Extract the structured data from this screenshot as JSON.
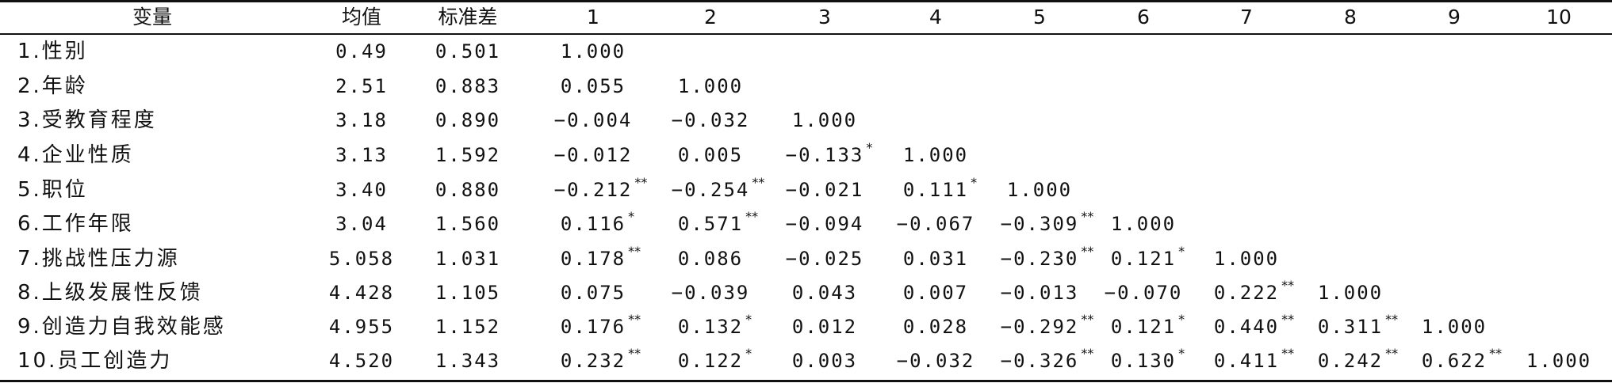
{
  "header": [
    "变量",
    "均值",
    "标准差",
    "1",
    "2",
    "3",
    "4",
    "5",
    "6",
    "7",
    "8",
    "9",
    "10"
  ],
  "rows": [
    {
      "label": "1.性别",
      "mean": "0.49",
      "sd": "0.501",
      "c": [
        {
          "v": "1.000",
          "s": ""
        }
      ]
    },
    {
      "label": "2.年龄",
      "mean": "2.51",
      "sd": "0.883",
      "c": [
        {
          "v": "0.055",
          "s": ""
        },
        {
          "v": "1.000",
          "s": ""
        }
      ]
    },
    {
      "label": "3.受教育程度",
      "mean": "3.18",
      "sd": "0.890",
      "c": [
        {
          "v": "−0.004",
          "s": ""
        },
        {
          "v": "−0.032",
          "s": ""
        },
        {
          "v": "1.000",
          "s": ""
        }
      ]
    },
    {
      "label": "4.企业性质",
      "mean": "3.13",
      "sd": "1.592",
      "c": [
        {
          "v": "−0.012",
          "s": ""
        },
        {
          "v": "0.005",
          "s": ""
        },
        {
          "v": "−0.133",
          "s": "*"
        },
        {
          "v": "1.000",
          "s": ""
        }
      ]
    },
    {
      "label": "5.职位",
      "mean": "3.40",
      "sd": "0.880",
      "c": [
        {
          "v": "−0.212",
          "s": "**"
        },
        {
          "v": "−0.254",
          "s": "**"
        },
        {
          "v": "−0.021",
          "s": ""
        },
        {
          "v": "0.111",
          "s": "*"
        },
        {
          "v": "1.000",
          "s": ""
        }
      ]
    },
    {
      "label": "6.工作年限",
      "mean": "3.04",
      "sd": "1.560",
      "c": [
        {
          "v": "0.116",
          "s": "*"
        },
        {
          "v": "0.571",
          "s": "**"
        },
        {
          "v": "−0.094",
          "s": ""
        },
        {
          "v": "−0.067",
          "s": ""
        },
        {
          "v": "−0.309",
          "s": "**"
        },
        {
          "v": "1.000",
          "s": ""
        }
      ]
    },
    {
      "label": "7.挑战性压力源",
      "mean": "5.058",
      "sd": "1.031",
      "c": [
        {
          "v": "0.178",
          "s": "**"
        },
        {
          "v": "0.086",
          "s": ""
        },
        {
          "v": "−0.025",
          "s": ""
        },
        {
          "v": "0.031",
          "s": ""
        },
        {
          "v": "−0.230",
          "s": "**"
        },
        {
          "v": "0.121",
          "s": "*"
        },
        {
          "v": "1.000",
          "s": ""
        }
      ]
    },
    {
      "label": "8.上级发展性反馈",
      "mean": "4.428",
      "sd": "1.105",
      "c": [
        {
          "v": "0.075",
          "s": ""
        },
        {
          "v": "−0.039",
          "s": ""
        },
        {
          "v": "0.043",
          "s": ""
        },
        {
          "v": "0.007",
          "s": ""
        },
        {
          "v": "−0.013",
          "s": ""
        },
        {
          "v": "−0.070",
          "s": ""
        },
        {
          "v": "0.222",
          "s": "**"
        },
        {
          "v": "1.000",
          "s": ""
        }
      ]
    },
    {
      "label": "9.创造力自我效能感",
      "mean": "4.955",
      "sd": "1.152",
      "c": [
        {
          "v": "0.176",
          "s": "**"
        },
        {
          "v": "0.132",
          "s": "*"
        },
        {
          "v": "0.012",
          "s": ""
        },
        {
          "v": "0.028",
          "s": ""
        },
        {
          "v": "−0.292",
          "s": "**"
        },
        {
          "v": "0.121",
          "s": "*"
        },
        {
          "v": "0.440",
          "s": "**"
        },
        {
          "v": "0.311",
          "s": "**"
        },
        {
          "v": "1.000",
          "s": ""
        }
      ]
    },
    {
      "label": "10.员工创造力",
      "mean": "4.520",
      "sd": "1.343",
      "c": [
        {
          "v": "0.232",
          "s": "**"
        },
        {
          "v": "0.122",
          "s": "*"
        },
        {
          "v": "0.003",
          "s": ""
        },
        {
          "v": "−0.032",
          "s": ""
        },
        {
          "v": "−0.326",
          "s": "**"
        },
        {
          "v": "0.130",
          "s": "*"
        },
        {
          "v": "0.411",
          "s": "**"
        },
        {
          "v": "0.242",
          "s": "**"
        },
        {
          "v": "0.622",
          "s": "**"
        },
        {
          "v": "1.000",
          "s": ""
        }
      ]
    }
  ]
}
